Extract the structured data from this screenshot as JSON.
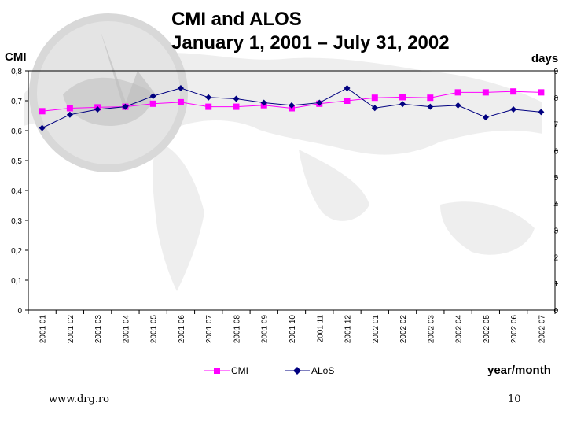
{
  "chart_data": {
    "type": "line",
    "title_line1": "CMI and ALOS",
    "title_line2": "January 1, 2001 – July 31, 2002",
    "ylabel_left": "CMI",
    "ylabel_right": "days",
    "xlabel": "year/month",
    "ylim_left": [
      0,
      0.8
    ],
    "ylim_right": [
      0,
      9
    ],
    "yticks_left": [
      "0",
      "0,1",
      "0,2",
      "0,3",
      "0,4",
      "0,5",
      "0,6",
      "0,7",
      "0,8"
    ],
    "yticks_right": [
      "0",
      "1",
      "2",
      "3",
      "4",
      "5",
      "6",
      "7",
      "8",
      "9"
    ],
    "categories": [
      "2001 01",
      "2001 02",
      "2001 03",
      "2001 04",
      "2001 05",
      "2001 06",
      "2001 07",
      "2001 08",
      "2001 09",
      "2001 10",
      "2001 11",
      "2001 12",
      "2002 01",
      "2002 02",
      "2002 03",
      "2002 04",
      "2002 05",
      "2002 06",
      "2002 07"
    ],
    "series": [
      {
        "name": "CMI",
        "axis": "left",
        "color": "#ff00ff",
        "marker": "square",
        "values": [
          0.665,
          0.675,
          0.678,
          0.68,
          0.69,
          0.695,
          0.68,
          0.68,
          0.685,
          0.675,
          0.69,
          0.7,
          0.71,
          0.712,
          0.71,
          0.728,
          0.728,
          0.731,
          0.728
        ]
      },
      {
        "name": "ALoS",
        "axis": "right",
        "color": "#000080",
        "marker": "diamond",
        "values": [
          6.85,
          7.35,
          7.55,
          7.65,
          8.05,
          8.35,
          8.0,
          7.95,
          7.8,
          7.7,
          7.8,
          8.35,
          7.6,
          7.75,
          7.65,
          7.7,
          7.25,
          7.55,
          7.45
        ]
      }
    ],
    "legend_position": "bottom-center"
  },
  "footer": {
    "website": "www.drg.ro",
    "page_number": "10"
  }
}
